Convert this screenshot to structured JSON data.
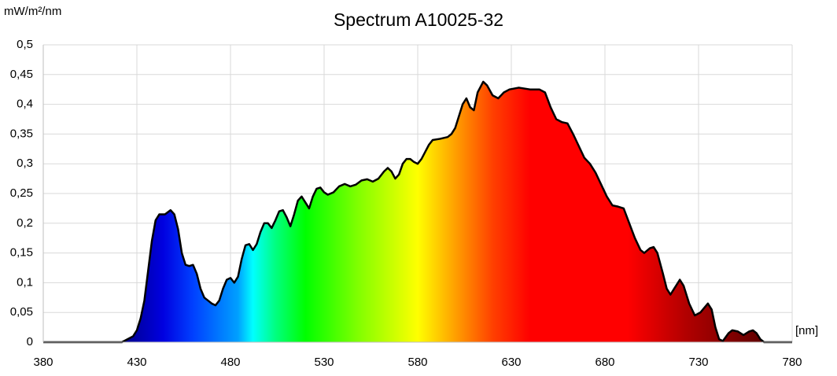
{
  "chart_data": {
    "type": "area",
    "title": "Spectrum A10025-32",
    "ylabel": "mW/m²/nm",
    "xlabel": "[nm]",
    "x": [
      380,
      400,
      420,
      422,
      425,
      428,
      430,
      432,
      434,
      436,
      438,
      440,
      442,
      445,
      448,
      450,
      452,
      454,
      456,
      458,
      460,
      462,
      464,
      466,
      468,
      470,
      472,
      474,
      476,
      478,
      480,
      482,
      484,
      486,
      488,
      490,
      492,
      494,
      496,
      498,
      500,
      502,
      504,
      506,
      508,
      510,
      512,
      514,
      516,
      518,
      520,
      522,
      524,
      526,
      528,
      530,
      532,
      535,
      538,
      541,
      544,
      547,
      550,
      553,
      556,
      559,
      562,
      564,
      566,
      568,
      570,
      572,
      574,
      576,
      578,
      580,
      582,
      584,
      586,
      588,
      592,
      596,
      598,
      600,
      604,
      606,
      608,
      610,
      612,
      615,
      617,
      620,
      623,
      626,
      629,
      634,
      640,
      645,
      648,
      651,
      654,
      657,
      660,
      663,
      666,
      669,
      672,
      675,
      678,
      681,
      684,
      687,
      690,
      693,
      696,
      699,
      701,
      704,
      706,
      708,
      711,
      713,
      715,
      717,
      720,
      722,
      725,
      728,
      731,
      735,
      737,
      739,
      741,
      743,
      746,
      748,
      751,
      754,
      757,
      759,
      761,
      763,
      765,
      780
    ],
    "values": [
      0,
      0,
      0,
      0,
      0.005,
      0.01,
      0.02,
      0.04,
      0.07,
      0.12,
      0.17,
      0.205,
      0.215,
      0.215,
      0.222,
      0.215,
      0.19,
      0.15,
      0.13,
      0.128,
      0.13,
      0.115,
      0.09,
      0.075,
      0.07,
      0.065,
      0.062,
      0.07,
      0.09,
      0.105,
      0.108,
      0.1,
      0.11,
      0.14,
      0.163,
      0.165,
      0.155,
      0.165,
      0.185,
      0.2,
      0.2,
      0.192,
      0.205,
      0.22,
      0.222,
      0.21,
      0.195,
      0.215,
      0.238,
      0.245,
      0.235,
      0.225,
      0.245,
      0.258,
      0.26,
      0.252,
      0.248,
      0.252,
      0.262,
      0.266,
      0.262,
      0.265,
      0.272,
      0.274,
      0.27,
      0.275,
      0.287,
      0.293,
      0.287,
      0.275,
      0.282,
      0.3,
      0.308,
      0.308,
      0.303,
      0.3,
      0.308,
      0.32,
      0.332,
      0.34,
      0.342,
      0.345,
      0.35,
      0.36,
      0.4,
      0.41,
      0.395,
      0.39,
      0.42,
      0.438,
      0.432,
      0.415,
      0.41,
      0.42,
      0.425,
      0.428,
      0.425,
      0.425,
      0.42,
      0.395,
      0.375,
      0.37,
      0.368,
      0.35,
      0.33,
      0.31,
      0.3,
      0.285,
      0.265,
      0.245,
      0.23,
      0.228,
      0.225,
      0.2,
      0.175,
      0.155,
      0.15,
      0.158,
      0.16,
      0.15,
      0.115,
      0.09,
      0.08,
      0.09,
      0.105,
      0.095,
      0.065,
      0.045,
      0.05,
      0.065,
      0.055,
      0.025,
      0.005,
      0.002,
      0.015,
      0.02,
      0.018,
      0.012,
      0.018,
      0.02,
      0.015,
      0.005,
      0,
      0
    ],
    "xlim": [
      380,
      780
    ],
    "xticks": [
      380,
      430,
      480,
      530,
      580,
      630,
      680,
      730,
      780
    ],
    "ylim": [
      0,
      0.5
    ],
    "yticks": [
      0,
      {
        "value": 0.05,
        "label": "0,05"
      },
      {
        "value": 0.1,
        "label": "0,1"
      },
      {
        "value": 0.15,
        "label": "0,15"
      },
      {
        "value": 0.2,
        "label": "0,2"
      },
      {
        "value": 0.25,
        "label": "0,25"
      },
      {
        "value": 0.3,
        "label": "0,3"
      },
      {
        "value": 0.35,
        "label": "0,35"
      },
      {
        "value": 0.4,
        "label": "0,4"
      },
      {
        "value": 0.45,
        "label": "0,45"
      },
      {
        "value": 0.5,
        "label": "0,5"
      }
    ],
    "grid": true,
    "line_color": "#000000"
  }
}
